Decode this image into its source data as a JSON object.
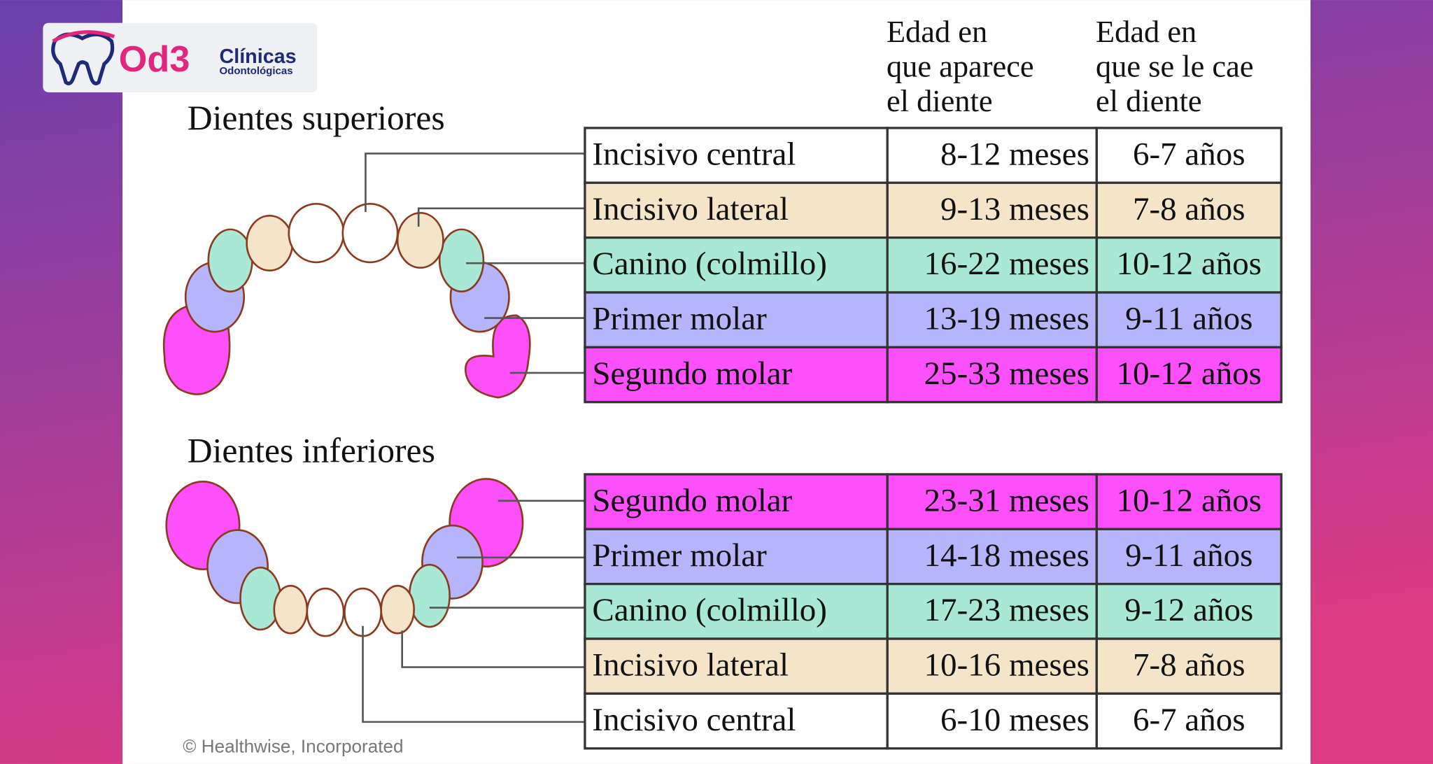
{
  "logo": {
    "brand": "Od3",
    "line1": "Clínicas",
    "line2": "Odontológicas"
  },
  "columns": [
    [
      "Edad en",
      "que aparece",
      "el diente"
    ],
    [
      "Edad en",
      "que se le cae",
      "el diente"
    ]
  ],
  "sections": [
    {
      "title": "Dientes superiores",
      "rows": [
        {
          "tooth": "Incisivo central",
          "appears": "8-12 meses",
          "falls": "6-7 años",
          "color": "#ffffff"
        },
        {
          "tooth": "Incisivo lateral",
          "appears": "9-13 meses",
          "falls": "7-8 años",
          "color": "#f6e4c9"
        },
        {
          "tooth": "Canino (colmillo)",
          "appears": "16-22 meses",
          "falls": "10-12 años",
          "color": "#a9e8d5"
        },
        {
          "tooth": "Primer molar",
          "appears": "13-19 meses",
          "falls": "9-11 años",
          "color": "#b6b4fb"
        },
        {
          "tooth": "Segundo molar",
          "appears": "25-33 meses",
          "falls": "10-12 años",
          "color": "#fd4ffc"
        }
      ]
    },
    {
      "title": "Dientes inferiores",
      "rows": [
        {
          "tooth": "Segundo molar",
          "appears": "23-31 meses",
          "falls": "10-12 años",
          "color": "#fd4ffc"
        },
        {
          "tooth": "Primer molar",
          "appears": "14-18 meses",
          "falls": "9-11 años",
          "color": "#b6b4fb"
        },
        {
          "tooth": "Canino (colmillo)",
          "appears": "17-23 meses",
          "falls": "9-12 años",
          "color": "#a9e8d5"
        },
        {
          "tooth": "Incisivo lateral",
          "appears": "10-16 meses",
          "falls": "7-8 años",
          "color": "#f6e4c9"
        },
        {
          "tooth": "Incisivo central",
          "appears": "6-10 meses",
          "falls": "6-7 años",
          "color": "#ffffff"
        }
      ]
    }
  ],
  "credit": "© Healthwise, Incorporated"
}
